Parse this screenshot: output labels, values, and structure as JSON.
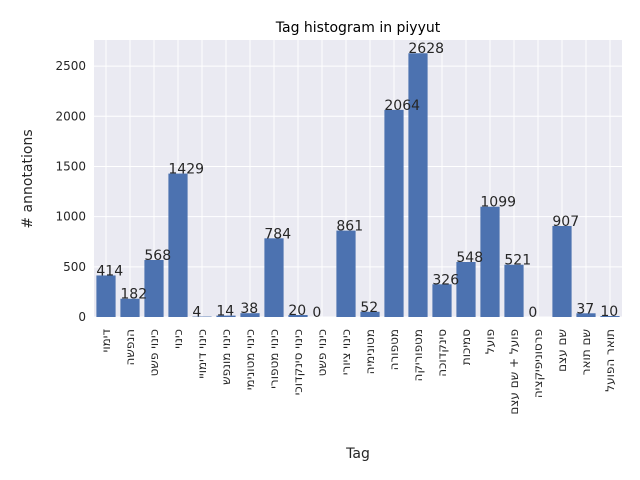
{
  "chart_data": {
    "type": "bar",
    "title": "Tag histogram in piyyut",
    "xlabel": "Tag",
    "ylabel": "# annotations",
    "categories": [
      "דימוי",
      "הנפשה",
      "כינוי פשט",
      "כינוי",
      "כינוי דימויי",
      "כינוי מונפש",
      "כינוי מטונימי",
      "כינוי מטפורי",
      "כינוי סינקדוכי",
      "כינוי פשט",
      "כינוי ציורי",
      "מטונימיה",
      "מטפורה",
      "מטפוריקה",
      "סינקדוכה",
      "סמיכות",
      "פועל",
      "פועל + שם עצם",
      "פרסוניפיקציה",
      "שם עצם",
      "שם תואר",
      "תואר הפועל"
    ],
    "values": [
      414,
      182,
      568,
      1429,
      4,
      14,
      38,
      784,
      20,
      0,
      861,
      52,
      2064,
      2628,
      326,
      548,
      1099,
      521,
      0,
      907,
      37,
      10
    ],
    "ylim": [
      0,
      2760
    ],
    "yticks": [
      0,
      500,
      1000,
      1500,
      2000,
      2500
    ],
    "grid": true,
    "colors": {
      "bar": "#4c72b0",
      "plot_background": "#eaeaf2",
      "grid": "#ffffff",
      "text": "#262626"
    }
  }
}
